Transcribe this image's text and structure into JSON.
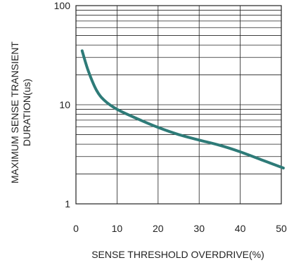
{
  "chart_data": {
    "type": "line",
    "title": "",
    "xlabel": "SENSE THRESHOLD OVERDRIVE(%)",
    "ylabel_line1": "MAXIMUM SENSE TRANSIENT",
    "ylabel_line2": "DURATION(us)",
    "xlim": [
      0,
      50
    ],
    "ylim": [
      1,
      100
    ],
    "yscale": "log",
    "grid": true,
    "x_ticks": [
      0,
      10,
      20,
      30,
      40,
      50
    ],
    "x_tick_labels": [
      "0",
      "10",
      "20",
      "30",
      "40",
      "50"
    ],
    "y_ticks": [
      1,
      10,
      100
    ],
    "y_tick_labels": [
      "1",
      "10",
      "100"
    ],
    "series": [
      {
        "color": "#2e7b78",
        "x": [
          1.5,
          3,
          5,
          7,
          10,
          15,
          20,
          25,
          30,
          35,
          40,
          45,
          50.5
        ],
        "y": [
          35,
          22,
          14,
          11,
          9,
          7.2,
          5.9,
          5.0,
          4.4,
          3.9,
          3.35,
          2.8,
          2.3
        ]
      }
    ]
  }
}
